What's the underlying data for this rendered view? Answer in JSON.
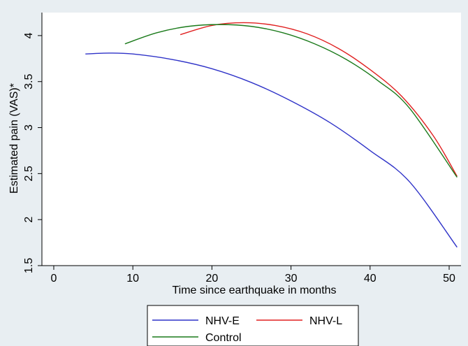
{
  "chart_data": {
    "type": "line",
    "title": "",
    "xlabel": "Time since earthquake in months",
    "ylabel": "Estimated pain (VAS)*",
    "xlim": [
      -1.5,
      51.5
    ],
    "ylim": [
      1.5,
      4.25
    ],
    "xticks": [
      0,
      10,
      20,
      30,
      40,
      50
    ],
    "yticks": [
      1.5,
      2,
      2.5,
      3,
      3.5,
      4
    ],
    "xtick_labels": [
      "0",
      "10",
      "20",
      "30",
      "40",
      "50"
    ],
    "ytick_labels": [
      "1.5",
      "2",
      "2.5",
      "3",
      "3.5",
      "4"
    ],
    "grid": false,
    "legend_position": "bottom",
    "series": [
      {
        "name": "NHV-E",
        "color": "#2f33c8",
        "x": [
          4,
          7,
          10,
          15,
          20,
          25,
          30,
          35,
          40,
          45,
          51
        ],
        "y": [
          3.8,
          3.81,
          3.8,
          3.74,
          3.64,
          3.49,
          3.29,
          3.05,
          2.75,
          2.41,
          1.7
        ]
      },
      {
        "name": "NHV-L",
        "color": "#e02020",
        "x": [
          16,
          20,
          24,
          28,
          32,
          36,
          40,
          44,
          48,
          51
        ],
        "y": [
          4.01,
          4.11,
          4.14,
          4.11,
          4.02,
          3.86,
          3.63,
          3.34,
          2.91,
          2.47
        ]
      },
      {
        "name": "Control",
        "color": "#1a7a1a",
        "x": [
          9,
          13,
          17,
          21,
          25,
          29,
          33,
          37,
          41,
          45,
          51
        ],
        "y": [
          3.91,
          4.03,
          4.1,
          4.12,
          4.1,
          4.03,
          3.91,
          3.74,
          3.51,
          3.21,
          2.46
        ]
      }
    ]
  }
}
